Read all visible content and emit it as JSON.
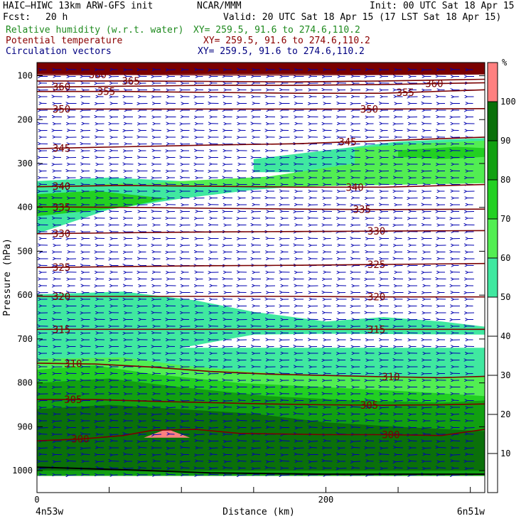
{
  "header": {
    "model": "HAIC–HIWC 13km ARW-GFS init",
    "org": "NCAR/MMM",
    "init": "Init: 00 UTC Sat 18 Apr 15",
    "fcst_label": "Fcst:",
    "fcst_value": "20 h",
    "valid": "Valid: 20 UTC Sat 18 Apr 15 (17 LST Sat 18 Apr 15)",
    "field1": "Relative humidity (w.r.t. water)",
    "field1_xy": "XY= 259.5, 91.6 to 274.6,110.2",
    "field2": "Potential temperature",
    "field2_xy": "XY= 259.5, 91.6 to 274.6,110.2",
    "field3": "Circulation vectors",
    "field3_xy": "XY= 259.5, 91.6 to 274.6,110.2"
  },
  "colors": {
    "rh_50": "#40e8a0",
    "rh_60": "#52ee52",
    "rh_70": "#22d022",
    "rh_80": "#11a011",
    "rh_90": "#0a700a",
    "rh_100": "#ff8080",
    "theta": "#7a0000",
    "vector": "#0000b0",
    "top": "#7a0000"
  },
  "chart_data": {
    "type": "cross-section",
    "ylabel": "Pressure (hPa)",
    "xlabel": "Distance (km)",
    "x_start_label": "4n53w",
    "x_end_label": "6n51w",
    "xlim": [
      0,
      310
    ],
    "ylim": [
      1050,
      70
    ],
    "x_ticks": [
      0,
      200
    ],
    "y_ticks": [
      100,
      200,
      300,
      400,
      500,
      600,
      700,
      800,
      900,
      1000
    ],
    "colorbar": {
      "unit": "%",
      "levels": [
        10,
        20,
        30,
        40,
        50,
        60,
        70,
        80,
        90,
        100
      ],
      "bins": [
        {
          "from": 0,
          "to": 50,
          "color": "#ffffff"
        },
        {
          "from": 50,
          "to": 60,
          "color": "#40e8a0"
        },
        {
          "from": 60,
          "to": 70,
          "color": "#52ee52"
        },
        {
          "from": 70,
          "to": 80,
          "color": "#22d022"
        },
        {
          "from": 80,
          "to": 90,
          "color": "#11a011"
        },
        {
          "from": 90,
          "to": 100,
          "color": "#0a700a"
        },
        {
          "from": 100,
          "to": 110,
          "color": "#ff8080"
        }
      ]
    },
    "theta_contours": [
      {
        "value": 300,
        "label": "300",
        "points": [
          [
            0,
            932
          ],
          [
            30,
            928
          ],
          [
            60,
            920
          ],
          [
            80,
            908
          ],
          [
            110,
            906
          ],
          [
            140,
            915
          ],
          [
            200,
            918
          ],
          [
            240,
            918
          ],
          [
            280,
            920
          ],
          [
            310,
            906
          ]
        ],
        "label_x": [
          30,
          245
        ]
      },
      {
        "value": 305,
        "label": "305",
        "points": [
          [
            0,
            838
          ],
          [
            40,
            838
          ],
          [
            80,
            842
          ],
          [
            120,
            845
          ],
          [
            160,
            848
          ],
          [
            200,
            850
          ],
          [
            240,
            851
          ],
          [
            280,
            850
          ],
          [
            310,
            848
          ]
        ],
        "label_x": [
          25,
          230
        ]
      },
      {
        "value": 310,
        "label": "310",
        "points": [
          [
            0,
            755
          ],
          [
            40,
            757
          ],
          [
            80,
            764
          ],
          [
            120,
            774
          ],
          [
            160,
            780
          ],
          [
            200,
            783
          ],
          [
            240,
            786
          ],
          [
            280,
            788
          ],
          [
            310,
            785
          ]
        ],
        "label_x": [
          25,
          245
        ]
      },
      {
        "value": 315,
        "label": "315",
        "points": [
          [
            0,
            678
          ],
          [
            60,
            678
          ],
          [
            120,
            678
          ],
          [
            180,
            678
          ],
          [
            240,
            678
          ],
          [
            310,
            678
          ]
        ],
        "label_x": [
          17,
          235
        ]
      },
      {
        "value": 320,
        "label": "320",
        "points": [
          [
            0,
            603
          ],
          [
            60,
            603
          ],
          [
            120,
            603
          ],
          [
            180,
            603
          ],
          [
            240,
            604
          ],
          [
            310,
            604
          ]
        ],
        "label_x": [
          17,
          235
        ]
      },
      {
        "value": 325,
        "label": "325",
        "points": [
          [
            0,
            537
          ],
          [
            60,
            535
          ],
          [
            120,
            533
          ],
          [
            180,
            532
          ],
          [
            240,
            530
          ],
          [
            310,
            528
          ]
        ],
        "label_x": [
          17,
          235
        ]
      },
      {
        "value": 330,
        "label": "330",
        "points": [
          [
            0,
            460
          ],
          [
            60,
            458
          ],
          [
            120,
            456
          ],
          [
            180,
            455
          ],
          [
            240,
            454
          ],
          [
            310,
            453
          ]
        ],
        "label_x": [
          17,
          235
        ]
      },
      {
        "value": 335,
        "label": "335",
        "points": [
          [
            0,
            399
          ],
          [
            60,
            400
          ],
          [
            120,
            402
          ],
          [
            180,
            404
          ],
          [
            240,
            405
          ],
          [
            310,
            404
          ]
        ],
        "label_x": [
          17,
          225
        ]
      },
      {
        "value": 340,
        "label": "340",
        "points": [
          [
            0,
            353
          ],
          [
            60,
            350
          ],
          [
            120,
            352
          ],
          [
            180,
            354
          ],
          [
            240,
            354
          ],
          [
            310,
            348
          ]
        ],
        "label_x": [
          17,
          220
        ]
      },
      {
        "value": 345,
        "label": "345",
        "points": [
          [
            0,
            266
          ],
          [
            60,
            262
          ],
          [
            120,
            258
          ],
          [
            180,
            255
          ],
          [
            240,
            248
          ],
          [
            310,
            240
          ]
        ],
        "label_x": [
          17,
          215
        ]
      },
      {
        "value": 350,
        "label": "350",
        "points": [
          [
            0,
            176
          ],
          [
            60,
            176
          ],
          [
            120,
            176
          ],
          [
            180,
            176
          ],
          [
            240,
            176
          ],
          [
            310,
            175
          ]
        ],
        "label_x": [
          17,
          230
        ]
      },
      {
        "value": 355,
        "label": "355",
        "points": [
          [
            0,
            136
          ],
          [
            60,
            136
          ],
          [
            120,
            138
          ],
          [
            180,
            140
          ],
          [
            240,
            140
          ],
          [
            310,
            132
          ]
        ],
        "label_x": [
          48,
          255
        ]
      },
      {
        "value": 360,
        "label": "360",
        "points": [
          [
            0,
            126
          ],
          [
            60,
            124
          ],
          [
            120,
            122
          ],
          [
            180,
            122
          ],
          [
            240,
            120
          ],
          [
            310,
            116
          ]
        ],
        "label_x": [
          17,
          275
        ]
      },
      {
        "value": 365,
        "label": "365",
        "points": [
          [
            0,
            112
          ],
          [
            60,
            112
          ],
          [
            120,
            113
          ],
          [
            180,
            114
          ],
          [
            240,
            112
          ],
          [
            310,
            108
          ]
        ],
        "label_x": [
          65
        ]
      },
      {
        "value": 380,
        "label": "380",
        "points": [
          [
            0,
            98
          ],
          [
            60,
            97
          ],
          [
            120,
            98
          ],
          [
            180,
            98
          ],
          [
            240,
            97
          ],
          [
            310,
            96
          ]
        ],
        "label_x": [
          42
        ]
      }
    ],
    "rh_regions": [
      {
        "level": 50,
        "points": [
          [
            0,
            340
          ],
          [
            50,
            332
          ],
          [
            100,
            340
          ],
          [
            150,
            340
          ],
          [
            200,
            320
          ],
          [
            250,
            258
          ],
          [
            310,
            242
          ],
          [
            310,
            340
          ],
          [
            200,
            348
          ],
          [
            150,
            360
          ],
          [
            100,
            380
          ],
          [
            50,
            405
          ],
          [
            0,
            460
          ]
        ]
      },
      {
        "level": 50,
        "points": [
          [
            150,
            290
          ],
          [
            200,
            270
          ],
          [
            250,
            250
          ],
          [
            310,
            242
          ],
          [
            310,
            320
          ],
          [
            250,
            320
          ],
          [
            200,
            320
          ],
          [
            150,
            320
          ]
        ]
      },
      {
        "level": 60,
        "points": [
          [
            0,
            355
          ],
          [
            60,
            345
          ],
          [
            110,
            352
          ],
          [
            160,
            355
          ],
          [
            220,
            350
          ],
          [
            310,
            345
          ],
          [
            310,
            300
          ],
          [
            260,
            290
          ],
          [
            220,
            300
          ],
          [
            160,
            330
          ],
          [
            100,
            340
          ],
          [
            60,
            350
          ],
          [
            0,
            350
          ]
        ]
      },
      {
        "level": 60,
        "points": [
          [
            220,
            265
          ],
          [
            260,
            255
          ],
          [
            310,
            248
          ],
          [
            310,
            300
          ],
          [
            260,
            300
          ],
          [
            220,
            300
          ]
        ]
      },
      {
        "level": 70,
        "points": [
          [
            0,
            370
          ],
          [
            40,
            362
          ],
          [
            90,
            380
          ],
          [
            60,
            400
          ],
          [
            0,
            420
          ]
        ]
      },
      {
        "level": 70,
        "points": [
          [
            250,
            270
          ],
          [
            290,
            262
          ],
          [
            310,
            265
          ],
          [
            310,
            285
          ],
          [
            280,
            290
          ],
          [
            250,
            285
          ]
        ]
      },
      {
        "level": 50,
        "points": [
          [
            0,
            598
          ],
          [
            60,
            592
          ],
          [
            110,
            612
          ],
          [
            150,
            638
          ],
          [
            200,
            660
          ],
          [
            240,
            650
          ],
          [
            280,
            660
          ],
          [
            310,
            672
          ],
          [
            310,
            690
          ],
          [
            200,
            688
          ],
          [
            150,
            690
          ],
          [
            100,
            720
          ],
          [
            60,
            740
          ],
          [
            0,
            745
          ]
        ]
      },
      {
        "level": 50,
        "points": [
          [
            0,
            720
          ],
          [
            310,
            720
          ],
          [
            310,
            1012
          ],
          [
            0,
            1012
          ]
        ]
      },
      {
        "level": 60,
        "points": [
          [
            0,
            745
          ],
          [
            60,
            742
          ],
          [
            100,
            760
          ],
          [
            150,
            775
          ],
          [
            200,
            782
          ],
          [
            260,
            788
          ],
          [
            310,
            785
          ],
          [
            310,
            1012
          ],
          [
            0,
            1012
          ]
        ]
      },
      {
        "level": 70,
        "points": [
          [
            0,
            770
          ],
          [
            40,
            760
          ],
          [
            80,
            780
          ],
          [
            140,
            800
          ],
          [
            200,
            810
          ],
          [
            260,
            820
          ],
          [
            310,
            830
          ],
          [
            310,
            1012
          ],
          [
            0,
            1012
          ]
        ]
      },
      {
        "level": 80,
        "points": [
          [
            0,
            800
          ],
          [
            50,
            790
          ],
          [
            100,
            810
          ],
          [
            160,
            830
          ],
          [
            220,
            840
          ],
          [
            280,
            845
          ],
          [
            310,
            840
          ],
          [
            310,
            1012
          ],
          [
            0,
            1012
          ]
        ]
      },
      {
        "level": 90,
        "points": [
          [
            0,
            860
          ],
          [
            50,
            850
          ],
          [
            100,
            860
          ],
          [
            150,
            870
          ],
          [
            200,
            890
          ],
          [
            250,
            900
          ],
          [
            310,
            910
          ],
          [
            310,
            1000
          ],
          [
            0,
            1000
          ]
        ]
      },
      {
        "level": 100,
        "points": [
          [
            74,
            925
          ],
          [
            90,
            905
          ],
          [
            106,
            925
          ]
        ]
      }
    ]
  }
}
